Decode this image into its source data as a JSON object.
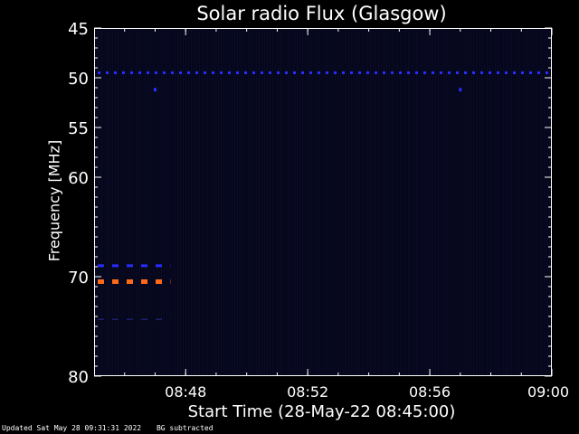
{
  "footer": {
    "updated": "Updated Sat May 28 09:31:31 2022",
    "note": "BG subtracted"
  },
  "colors": {
    "background": "#000000",
    "plot_background": "#06071c",
    "axis": "#ffffff",
    "line_blue": "#2a2cff",
    "line_orange": "#ff6a1a"
  },
  "chart_data": {
    "type": "heatmap",
    "title": "Solar radio Flux (Glasgow)",
    "xlabel": "Start Time (28-May-22 08:45:00)",
    "ylabel": "Frequency [MHz]",
    "x_axis": {
      "range": [
        "08:45",
        "09:00"
      ],
      "ticks": [
        "08:48",
        "08:52",
        "08:56",
        "09:00"
      ]
    },
    "y_axis": {
      "range": [
        45,
        80
      ],
      "inverted": true,
      "ticks": [
        "45",
        "50",
        "55",
        "60",
        "70",
        "80"
      ]
    },
    "features": [
      {
        "kind": "dashed-line",
        "freq_mhz": 49.5,
        "x_start": "08:45",
        "x_end": "09:00",
        "color": "blue"
      },
      {
        "kind": "dot",
        "freq_mhz": 51.2,
        "x": "08:47",
        "color": "blue"
      },
      {
        "kind": "dot",
        "freq_mhz": 51.2,
        "x": "08:57",
        "color": "blue"
      },
      {
        "kind": "dashed-line",
        "freq_mhz": 68.9,
        "x_start": "08:45",
        "x_end": "08:47.5",
        "color": "blue"
      },
      {
        "kind": "dashed-line",
        "freq_mhz": 70.5,
        "x_start": "08:45",
        "x_end": "08:47.5",
        "color": "orange"
      },
      {
        "kind": "dashed-line",
        "freq_mhz": 74.3,
        "x_start": "08:45",
        "x_end": "08:47.5",
        "color": "dark-blue"
      }
    ]
  }
}
